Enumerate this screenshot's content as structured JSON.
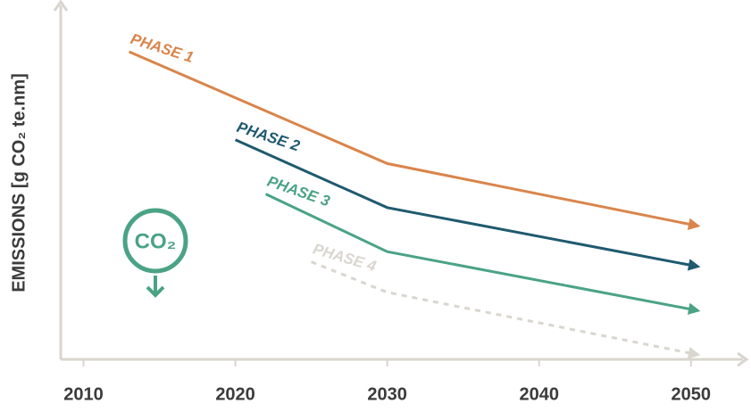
{
  "chart_data": {
    "type": "line",
    "ylabel": "EMISSIONS [g CO₂ te.nm]",
    "icon_label": "CO₂",
    "xlim": [
      2008.5,
      2053.6
    ],
    "xticks": [
      2010,
      2020,
      2030,
      2040,
      2050
    ],
    "ylim": [
      0,
      100
    ],
    "series": [
      {
        "name": "PHASE 1",
        "color": "#d9854b",
        "dashed": false,
        "x": [
          2013,
          2030,
          2050
        ],
        "values": [
          90,
          57,
          39
        ]
      },
      {
        "name": "PHASE 2",
        "color": "#1f5a6f",
        "dashed": false,
        "x": [
          2020,
          2030,
          2050
        ],
        "values": [
          64,
          44,
          27
        ]
      },
      {
        "name": "PHASE 3",
        "color": "#4aa384",
        "dashed": false,
        "x": [
          2022,
          2030,
          2050
        ],
        "values": [
          48,
          31,
          14
        ]
      },
      {
        "name": "PHASE 4",
        "color": "#d9d6cf",
        "dashed": true,
        "x": [
          2025,
          2030,
          2050
        ],
        "values": [
          28,
          19,
          1
        ]
      }
    ]
  }
}
